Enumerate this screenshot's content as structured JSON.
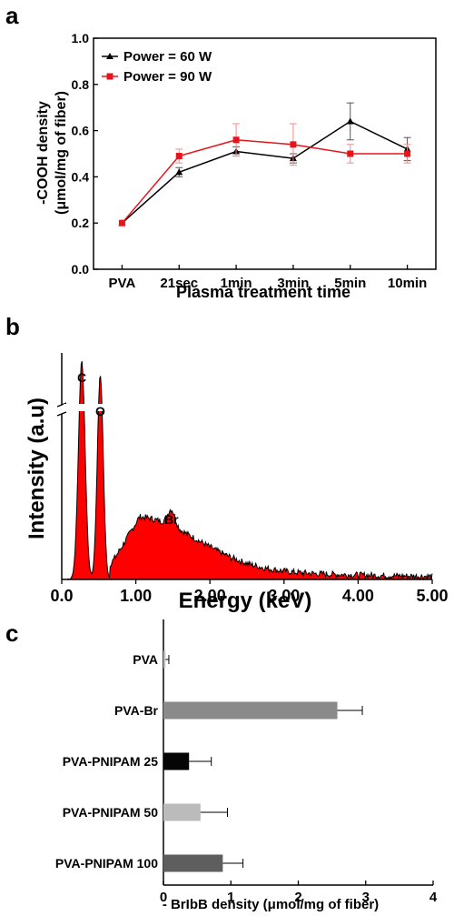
{
  "chart_data": [
    {
      "panel_label": "a",
      "type": "line",
      "xlabel": "Plasma treatment time",
      "ylabel_line1": "-COOH density",
      "ylabel_line2": "(μmol/mg of fiber)",
      "categories": [
        "PVA",
        "21sec",
        "1min",
        "3min",
        "5min",
        "10min"
      ],
      "ylim": [
        0.0,
        1.0
      ],
      "yticks": [
        "0.0",
        "0.2",
        "0.4",
        "0.6",
        "0.8",
        "1.0"
      ],
      "legend_position": "top-left",
      "series": [
        {
          "name": "Power = 60 W",
          "color": "#000000",
          "marker": "triangle",
          "values": [
            0.2,
            0.42,
            0.51,
            0.48,
            0.64,
            0.52
          ],
          "errors": [
            0.0,
            0.02,
            0.02,
            0.02,
            0.08,
            0.05
          ]
        },
        {
          "name": "Power = 90 W",
          "color": "#e8141b",
          "marker": "square",
          "values": [
            0.2,
            0.49,
            0.56,
            0.54,
            0.5,
            0.5
          ],
          "errors": [
            0.0,
            0.03,
            0.07,
            0.09,
            0.04,
            0.04
          ]
        }
      ]
    },
    {
      "panel_label": "b",
      "type": "area",
      "xlabel": "Energy (keV)",
      "ylabel": "Intensity (a.u)",
      "xlim": [
        0.0,
        5.0
      ],
      "xticks": [
        "0.0",
        "1.00",
        "2.00",
        "3.00",
        "4.00",
        "5.00"
      ],
      "fill_color": "#ff0000",
      "line_color": "#000000",
      "peaks": [
        {
          "label": "C",
          "energy": 0.27
        },
        {
          "label": "O",
          "energy": 0.52
        },
        {
          "label": "Br",
          "energy": 1.48
        }
      ]
    },
    {
      "panel_label": "c",
      "type": "bar",
      "orientation": "horizontal",
      "xlabel": "- BrIbB density (μmol/mg of fiber)",
      "categories": [
        "PVA",
        "PVA-Br",
        "PVA-PNIPAM 25",
        "PVA-PNIPAM 50",
        "PVA-PNIPAM 100"
      ],
      "values": [
        0.03,
        2.58,
        0.38,
        0.55,
        0.88
      ],
      "errors": [
        0.05,
        0.37,
        0.33,
        0.4,
        0.3
      ],
      "colors": [
        "#bdbdbd",
        "#8a8a8a",
        "#050505",
        "#bbbbbb",
        "#5e5e5e"
      ],
      "xlim": [
        0,
        4
      ],
      "xticks": [
        "0",
        "1",
        "2",
        "3",
        "4"
      ]
    }
  ]
}
